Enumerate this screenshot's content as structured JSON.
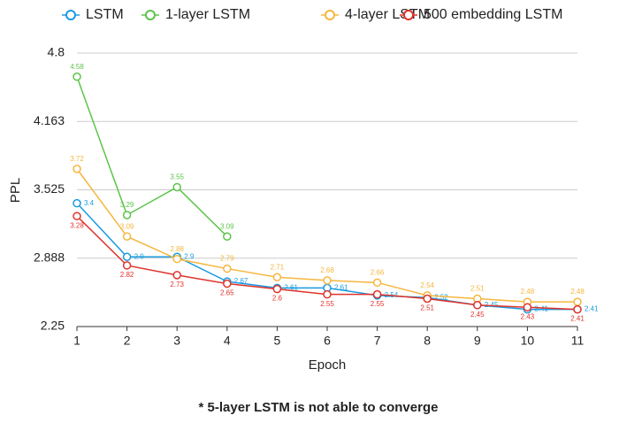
{
  "chart_data": {
    "type": "line",
    "x_label": "Epoch",
    "y_label": "PPL",
    "annotation": "* 5-layer LSTM is not able to converge",
    "x": [
      1,
      2,
      3,
      4,
      5,
      6,
      7,
      8,
      9,
      10,
      11
    ],
    "xlim": [
      1,
      11
    ],
    "xticks": [
      1,
      2,
      3,
      4,
      5,
      6,
      7,
      8,
      9,
      10,
      11
    ],
    "ylim": [
      2.25,
      4.8
    ],
    "yticks": [
      2.25,
      2.888,
      3.525,
      4.163,
      4.8
    ],
    "grid": true,
    "legend": "top",
    "series": [
      {
        "name": "LSTM",
        "color": "#1a9be0",
        "values": [
          3.4,
          2.9,
          2.9,
          2.67,
          2.61,
          2.61,
          2.54,
          2.52,
          2.45,
          2.41,
          2.41
        ]
      },
      {
        "name": "1-layer LSTM",
        "color": "#5cc44a",
        "values": [
          4.58,
          3.29,
          3.55,
          3.09,
          null,
          null,
          null,
          null,
          null,
          null,
          null
        ]
      },
      {
        "name": "4-layer LSTM",
        "color": "#f5b73f",
        "values": [
          3.72,
          3.09,
          2.88,
          2.79,
          2.71,
          2.68,
          2.66,
          2.54,
          2.51,
          2.48,
          2.48
        ]
      },
      {
        "name": "500 embedding LSTM",
        "color": "#e0332b",
        "values": [
          3.28,
          2.82,
          2.73,
          2.65,
          2.6,
          2.55,
          2.55,
          2.51,
          2.45,
          2.43,
          2.41
        ]
      }
    ]
  }
}
